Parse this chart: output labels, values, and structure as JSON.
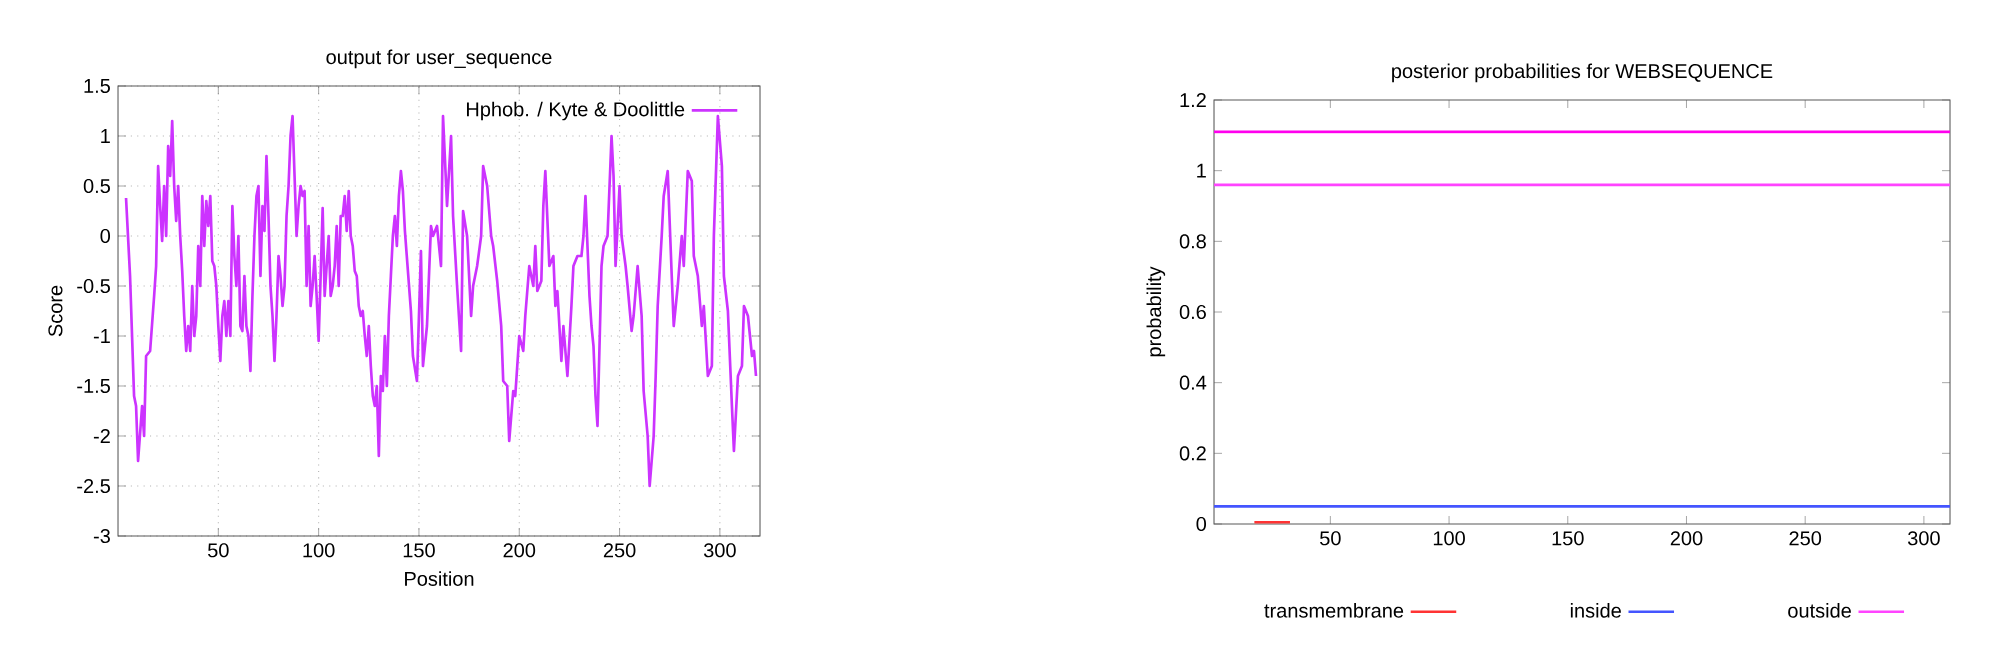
{
  "chart_data": [
    {
      "type": "line",
      "title": "output for user_sequence",
      "xlabel": "Position",
      "ylabel": "Score",
      "xlim": [
        0,
        320
      ],
      "xticks": [
        50,
        100,
        150,
        200,
        250,
        300
      ],
      "ylim": [
        -3,
        1.5
      ],
      "yticks": [
        -3,
        -2.5,
        -2,
        -1.5,
        -1,
        -0.5,
        0,
        0.5,
        1,
        1.5
      ],
      "grid": true,
      "legend": "top right",
      "marker": "none",
      "line_style": "solid",
      "x": [
        4,
        6,
        8,
        9,
        10,
        12,
        13,
        14,
        16,
        18,
        19,
        20,
        21,
        22,
        23,
        24,
        25,
        26,
        27,
        28,
        29,
        30,
        31,
        32,
        33,
        34,
        35,
        36,
        37,
        38,
        39,
        40,
        41,
        42,
        43,
        44,
        45,
        46,
        47,
        48,
        49,
        50,
        51,
        52,
        53,
        54,
        55,
        56,
        57,
        58,
        59,
        60,
        61,
        62,
        63,
        64,
        65,
        66,
        67,
        68,
        69,
        70,
        71,
        72,
        73,
        74,
        75,
        76,
        77,
        78,
        79,
        80,
        81,
        82,
        83,
        84,
        85,
        86,
        87,
        88,
        89,
        90,
        91,
        92,
        93,
        94,
        95,
        96,
        97,
        98,
        99,
        100,
        101,
        102,
        103,
        104,
        105,
        106,
        107,
        108,
        109,
        110,
        111,
        112,
        113,
        114,
        115,
        116,
        117,
        118,
        119,
        120,
        121,
        122,
        123,
        124,
        125,
        126,
        127,
        128,
        129,
        130,
        131,
        132,
        133,
        134,
        135,
        136,
        137,
        138,
        139,
        140,
        141,
        142,
        143,
        146,
        147,
        149,
        151,
        152,
        154,
        156,
        157,
        159,
        161,
        162,
        164,
        166,
        167,
        169,
        171,
        172,
        174,
        176,
        177,
        179,
        181,
        182,
        184,
        186,
        187,
        189,
        191,
        192,
        194,
        195,
        197,
        198,
        200,
        202,
        203,
        205,
        207,
        208,
        209,
        211,
        212,
        213,
        215,
        217,
        218,
        219,
        221,
        222,
        224,
        226,
        227,
        229,
        231,
        232,
        233,
        235,
        236,
        237,
        238,
        239,
        241,
        242,
        244,
        246,
        247,
        248,
        250,
        251,
        253,
        254,
        256,
        257,
        259,
        261,
        262,
        264,
        265,
        267,
        268,
        269,
        271,
        272,
        274,
        276,
        277,
        279,
        281,
        282,
        284,
        286,
        287,
        289,
        291,
        292,
        294,
        296,
        297,
        299,
        301,
        302,
        304,
        306,
        307,
        309,
        311,
        312,
        314,
        316,
        317,
        318
      ],
      "series": [
        {
          "name": "Hphob. / Kyte & Doolittle",
          "color": "#cc33ff",
          "values": [
            0.38,
            -0.4,
            -1.6,
            -1.7,
            -2.25,
            -1.7,
            -2.0,
            -1.2,
            -1.15,
            -0.6,
            -0.3,
            0.7,
            0.3,
            -0.05,
            0.5,
            0.0,
            0.9,
            0.6,
            1.15,
            0.5,
            0.15,
            0.5,
            0.0,
            -0.35,
            -0.8,
            -1.15,
            -0.9,
            -1.15,
            -0.5,
            -1.0,
            -0.8,
            -0.1,
            -0.5,
            0.4,
            -0.1,
            0.35,
            0.1,
            0.4,
            -0.25,
            -0.3,
            -0.5,
            -0.9,
            -1.25,
            -0.8,
            -0.65,
            -1.0,
            -0.65,
            -1.0,
            0.3,
            -0.2,
            -0.5,
            0.0,
            -0.9,
            -0.95,
            -0.4,
            -0.9,
            -1.0,
            -1.35,
            -0.6,
            0.0,
            0.4,
            0.5,
            -0.4,
            0.3,
            0.05,
            0.8,
            0.2,
            -0.5,
            -0.8,
            -1.25,
            -0.8,
            -0.2,
            -0.4,
            -0.7,
            -0.5,
            0.2,
            0.5,
            1.0,
            1.2,
            0.6,
            0.0,
            0.3,
            0.5,
            0.4,
            0.45,
            -0.5,
            0.1,
            -0.7,
            -0.5,
            -0.2,
            -0.6,
            -1.05,
            -0.4,
            0.28,
            -0.6,
            -0.3,
            0.0,
            -0.6,
            -0.5,
            -0.3,
            0.1,
            -0.5,
            0.2,
            0.2,
            0.4,
            0.05,
            0.45,
            0.0,
            -0.1,
            -0.35,
            -0.4,
            -0.7,
            -0.8,
            -0.75,
            -1.0,
            -1.2,
            -0.9,
            -1.3,
            -1.6,
            -1.7,
            -1.5,
            -2.2,
            -1.4,
            -1.55,
            -1.0,
            -1.5,
            -0.8,
            -0.4,
            0.0,
            0.2,
            -0.1,
            0.4,
            0.65,
            0.45,
            0.05,
            -0.75,
            -1.2,
            -1.45,
            -0.15,
            -1.3,
            -0.9,
            0.1,
            0.0,
            0.1,
            -0.3,
            1.2,
            0.3,
            1.0,
            0.2,
            -0.5,
            -1.15,
            0.25,
            0.0,
            -0.8,
            -0.5,
            -0.3,
            0.0,
            0.7,
            0.5,
            0.0,
            -0.1,
            -0.45,
            -0.9,
            -1.45,
            -1.5,
            -2.05,
            -1.55,
            -1.6,
            -1.0,
            -1.15,
            -0.8,
            -0.3,
            -0.5,
            -0.1,
            -0.55,
            -0.45,
            0.3,
            0.65,
            -0.3,
            -0.2,
            -0.7,
            -0.55,
            -1.25,
            -0.9,
            -1.4,
            -0.7,
            -0.3,
            -0.2,
            -0.2,
            0.0,
            0.4,
            -0.6,
            -0.9,
            -1.1,
            -1.6,
            -1.9,
            -0.3,
            -0.1,
            0.0,
            1.0,
            0.6,
            -0.3,
            0.5,
            0.0,
            -0.3,
            -0.5,
            -0.95,
            -0.8,
            -0.3,
            -0.8,
            -1.55,
            -2.0,
            -2.5,
            -2.0,
            -1.4,
            -0.7,
            0.0,
            0.4,
            0.65,
            -0.4,
            -0.9,
            -0.5,
            0.0,
            -0.3,
            0.65,
            0.55,
            -0.2,
            -0.4,
            -0.9,
            -0.7,
            -1.4,
            -1.3,
            0.0,
            1.2,
            0.7,
            -0.4,
            -0.75,
            -1.7,
            -2.15,
            -1.4,
            -1.3,
            -0.7,
            -0.8,
            -1.2,
            -1.15,
            -1.4
          ]
        }
      ]
    },
    {
      "type": "line",
      "title": "posterior probabilities for WEBSEQUENCE",
      "ylabel": "probability",
      "xlim": [
        1,
        311
      ],
      "xticks": [
        50,
        100,
        150,
        200,
        250,
        300
      ],
      "ylim": [
        0,
        1.2
      ],
      "yticks": [
        0,
        0.2,
        0.4,
        0.6,
        0.8,
        1,
        1.2
      ],
      "grid": false,
      "legend": "bottom",
      "marker": "none",
      "line_style": "solid",
      "series": [
        {
          "name": "transmembrane",
          "color": "#ff3333",
          "x": [
            18,
            33
          ],
          "values": [
            0.005,
            0.005
          ]
        },
        {
          "name": "inside",
          "color": "#4455ff",
          "x": [
            1,
            311
          ],
          "values": [
            0.05,
            0.05
          ]
        },
        {
          "name": "outside",
          "color": "#ff44ff",
          "x": [
            1,
            311
          ],
          "values": [
            0.96,
            0.96
          ]
        },
        {
          "color": "#ff00ee",
          "x": [
            1,
            311
          ],
          "values": [
            1.11,
            1.11
          ]
        }
      ]
    }
  ]
}
